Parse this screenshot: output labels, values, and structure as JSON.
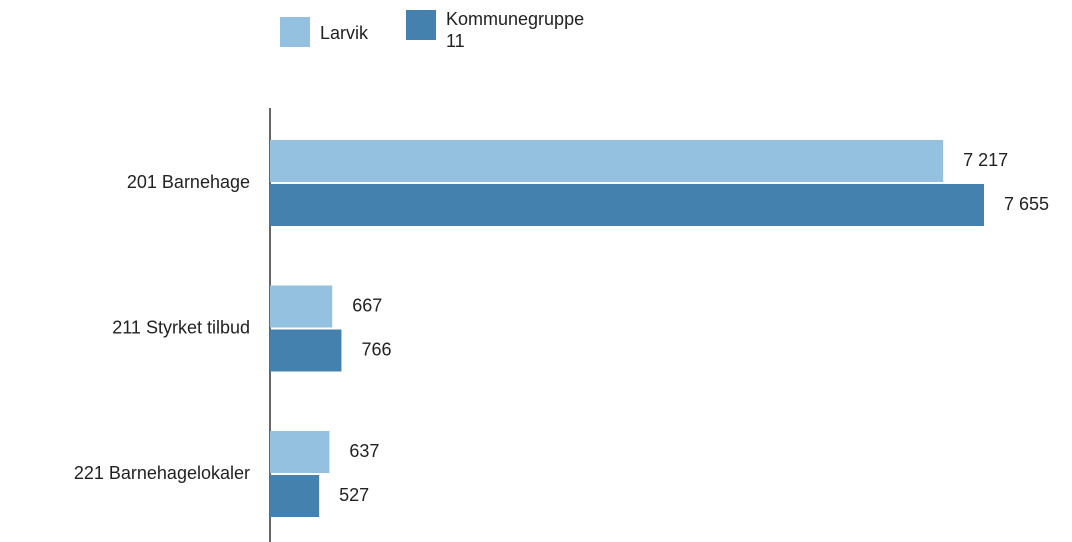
{
  "chart_data": {
    "type": "bar",
    "orientation": "horizontal",
    "categories": [
      "201 Barnehage",
      "211 Styrket tilbud",
      "221 Barnehagelokaler"
    ],
    "series": [
      {
        "name": "Larvik",
        "color": "#95c1e1",
        "values": [
          7217,
          667,
          637
        ],
        "value_labels": [
          "7 217",
          "667",
          "637"
        ]
      },
      {
        "name": "Kommunegruppe 11",
        "color": "#4581ae",
        "values": [
          7655,
          766,
          527
        ],
        "value_labels": [
          "7 655",
          "766",
          "527"
        ]
      }
    ]
  }
}
